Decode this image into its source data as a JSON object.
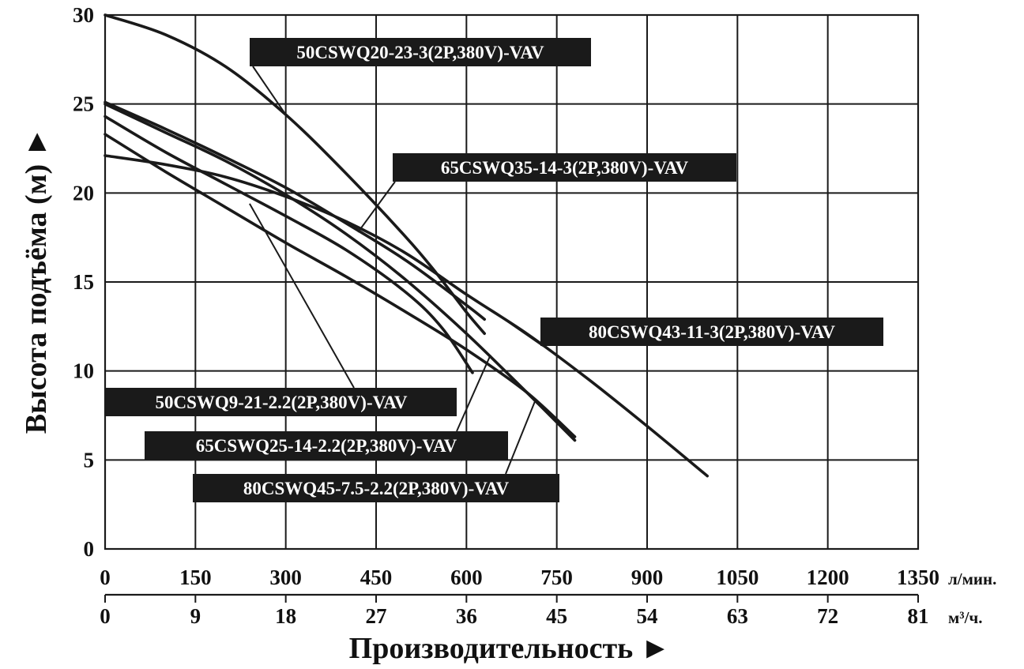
{
  "chart_data": {
    "type": "line",
    "title": "",
    "xlabel": "Производительность ►",
    "ylabel": "Высота подъёма (м) ►",
    "x_unit_primary": "л/мин.",
    "x_unit_secondary": "м³/ч.",
    "xlim": [
      0,
      1350
    ],
    "ylim": [
      0,
      30
    ],
    "grid": true,
    "x_ticks_primary": [
      "0",
      "150",
      "300",
      "450",
      "600",
      "750",
      "900",
      "1050",
      "1200",
      "1350"
    ],
    "x_ticks_secondary": [
      "0",
      "9",
      "18",
      "27",
      "36",
      "45",
      "54",
      "63",
      "72",
      "81"
    ],
    "y_ticks": [
      "0",
      "5",
      "10",
      "15",
      "20",
      "25",
      "30"
    ],
    "colors": {
      "line": "#1a1a1a",
      "label_bg": "#1a1a1a",
      "label_text": "#ffffff",
      "grid": "#1a1a1a"
    },
    "series": [
      {
        "name": "50CSWQ20-23-3(2P,380V)-VAV",
        "x": [
          0,
          100,
          200,
          300,
          400,
          500,
          550,
          600,
          630
        ],
        "y": [
          30,
          28.9,
          27.1,
          24.4,
          21.1,
          17.5,
          15.5,
          13.3,
          12.1
        ]
      },
      {
        "name": "65CSWQ35-14-3(2P,380V)-VAV",
        "x": [
          0,
          100,
          200,
          300,
          400,
          500,
          600,
          630
        ],
        "y": [
          25.1,
          23.6,
          22.0,
          20.3,
          18.3,
          16.2,
          13.7,
          12.9
        ]
      },
      {
        "name": "80CSWQ43-11-3(2P,380V)-VAV",
        "x": [
          0,
          100,
          200,
          300,
          400,
          500,
          600,
          700,
          800,
          900,
          1000
        ],
        "y": [
          22.1,
          21.6,
          20.9,
          19.8,
          18.4,
          16.6,
          14.3,
          12.1,
          9.6,
          6.9,
          4.1
        ]
      },
      {
        "name": "50CSWQ9-21-2.2(2P,380V)-VAV",
        "x": [
          0,
          100,
          200,
          300,
          400,
          500,
          560,
          610
        ],
        "y": [
          24.3,
          22.3,
          20.5,
          18.7,
          16.8,
          14.4,
          12.4,
          9.9
        ]
      },
      {
        "name": "65CSWQ25-14-2.2(2P,380V)-VAV",
        "x": [
          0,
          100,
          200,
          300,
          400,
          500,
          600,
          700,
          780
        ],
        "y": [
          25.0,
          23.4,
          21.8,
          19.9,
          17.7,
          15.1,
          12.1,
          8.8,
          6.1
        ]
      },
      {
        "name": "80CSWQ45-7.5-2.2(2P,380V)-VAV",
        "x": [
          0,
          100,
          200,
          300,
          400,
          500,
          600,
          700,
          780
        ],
        "y": [
          23.3,
          21.2,
          19.2,
          17.2,
          15.3,
          13.3,
          11.2,
          8.8,
          6.3
        ]
      }
    ]
  }
}
